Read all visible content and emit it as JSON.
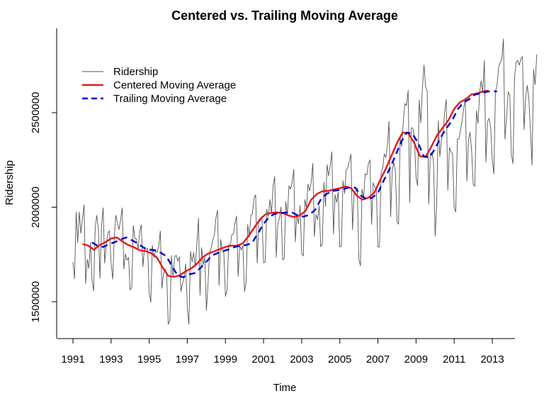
{
  "chart_data": {
    "type": "line",
    "title": "Centered vs. Trailing Moving Average",
    "xlabel": "Time",
    "ylabel": "Ridership",
    "xlim": [
      1991.0,
      2013.25
    ],
    "ylim": [
      1380000,
      2950000
    ],
    "x_ticks": [
      1991,
      1993,
      1995,
      1997,
      1999,
      2001,
      2003,
      2005,
      2007,
      2009,
      2011,
      2013
    ],
    "x_tick_labels": [
      "1991",
      "1993",
      "1995",
      "1997",
      "1999",
      "2001",
      "2003",
      "2005",
      "2007",
      "2009",
      "2011",
      "2013"
    ],
    "y_ticks": [
      1500000,
      2000000,
      2500000
    ],
    "y_tick_labels": [
      "1500000",
      "2000000",
      "2500000"
    ],
    "legend_position": "top-left",
    "grid": false,
    "series": [
      {
        "name": "Ridership",
        "color": "#555555",
        "style": "solid-thin",
        "start": 1991.0,
        "step": 0.0833333,
        "values": [
          1709000,
          1621000,
          1973000,
          1812000,
          1975000,
          1862000,
          1940000,
          2013000,
          1596000,
          1725000,
          1676000,
          1814000,
          1615000,
          1557000,
          1891000,
          1956000,
          1885000,
          1623000,
          1903000,
          1997000,
          1704000,
          1810000,
          1862000,
          1875000,
          1705000,
          1619000,
          1837000,
          1957000,
          1917000,
          1882000,
          1933000,
          1996000,
          1673000,
          1753000,
          1720000,
          1734000,
          1563000,
          1574000,
          1903000,
          1834000,
          1831000,
          1776000,
          1868000,
          1907000,
          1686000,
          1779000,
          1776000,
          1783000,
          1548000,
          1497000,
          1798000,
          1733000,
          1772000,
          1761000,
          1792000,
          1875000,
          1571000,
          1647000,
          1673000,
          1646000,
          1381000,
          1402000,
          1744000,
          1630000,
          1736000,
          1746000,
          1714000,
          1738000,
          1554000,
          1598000,
          1629000,
          1700000,
          1465000,
          1380000,
          1766000,
          1711000,
          1760000,
          1685000,
          1803000,
          1941000,
          1534000,
          1786000,
          1696000,
          1734000,
          1454000,
          1590000,
          1758000,
          1784000,
          1824000,
          1852000,
          1941000,
          1985000,
          1587000,
          1830000,
          1768000,
          1758000,
          1528000,
          1560000,
          1803000,
          1794000,
          1854000,
          1858000,
          1914000,
          1953000,
          1634000,
          1796000,
          1774000,
          1795000,
          1554000,
          1600000,
          1908000,
          1842000,
          1956000,
          1967000,
          2046000,
          2066000,
          1705000,
          1924000,
          1928000,
          1951000,
          1706000,
          1709000,
          1989000,
          1951000,
          2040000,
          1966000,
          2111000,
          2161000,
          1735000,
          1916000,
          1940000,
          2001000,
          1721000,
          1729000,
          2030000,
          1955000,
          2113000,
          2095000,
          2131000,
          2200000,
          1817000,
          1963000,
          1913000,
          2009000,
          1756000,
          1742000,
          2040000,
          1997000,
          2122000,
          2086000,
          2134000,
          2232000,
          1845000,
          1962000,
          1934000,
          2007000,
          1791000,
          1809000,
          2134000,
          2004000,
          2225000,
          2165000,
          2222000,
          2292000,
          1858000,
          2066000,
          2025000,
          2080000,
          1789000,
          1795000,
          2141000,
          2072000,
          2197000,
          2208000,
          2244000,
          2280000,
          1881000,
          2073000,
          2082000,
          2101000,
          1726000,
          1690000,
          2095000,
          2050000,
          2176000,
          2170000,
          2230000,
          2250000,
          1909000,
          2129000,
          2107000,
          2098000,
          1790000,
          1790000,
          2178000,
          2208000,
          2282000,
          2263000,
          2330000,
          2453000,
          1950000,
          2195000,
          2236000,
          2191000,
          1923000,
          1910000,
          2366000,
          2321000,
          2455000,
          2548000,
          2537000,
          2618000,
          2026000,
          2419000,
          2418000,
          2359000,
          2153000,
          2114000,
          2566000,
          2446000,
          2628000,
          2751000,
          2637000,
          2616000,
          2016000,
          2283000,
          2289000,
          2244000,
          1847000,
          2014000,
          2457000,
          2268000,
          2357000,
          2393000,
          2498000,
          2570000,
          2091000,
          2315000,
          2294000,
          2285000,
          1999000,
          1975000,
          2361000,
          2360000,
          2409000,
          2457000,
          2520000,
          2578000,
          2138000,
          2356000,
          2396000,
          2300000,
          2121000,
          2110000,
          2510000,
          2442000,
          2604000,
          2669000,
          2605000,
          2775000,
          2238000,
          2454000,
          2469000,
          2420000,
          2250000,
          2175000,
          2614000,
          2644000,
          2742000,
          2765000,
          2784000,
          2890000,
          2360000,
          2477000,
          2610000,
          2593000,
          2280000,
          2230000,
          2687000,
          2766000,
          2776000,
          2751000,
          2785000,
          2797000,
          2410000,
          2579000,
          2644000,
          2579000,
          2410000,
          2222000,
          2729000,
          2648000,
          2808000
        ]
      },
      {
        "name": "Centered Moving Average",
        "color": "#e41a1c",
        "style": "solid-thick",
        "points": [
          [
            1991.5,
            1805000
          ],
          [
            1991.8,
            1797000
          ],
          [
            1992.1,
            1775000
          ],
          [
            1992.4,
            1800000
          ],
          [
            1992.7,
            1815000
          ],
          [
            1993.0,
            1834000
          ],
          [
            1993.3,
            1840000
          ],
          [
            1993.6,
            1818000
          ],
          [
            1993.9,
            1800000
          ],
          [
            1994.2,
            1788000
          ],
          [
            1994.5,
            1772000
          ],
          [
            1994.8,
            1768000
          ],
          [
            1995.1,
            1757000
          ],
          [
            1995.4,
            1734000
          ],
          [
            1995.7,
            1682000
          ],
          [
            1996.0,
            1637000
          ],
          [
            1996.3,
            1631000
          ],
          [
            1996.6,
            1640000
          ],
          [
            1996.9,
            1660000
          ],
          [
            1997.2,
            1676000
          ],
          [
            1997.5,
            1700000
          ],
          [
            1997.8,
            1735000
          ],
          [
            1998.1,
            1755000
          ],
          [
            1998.4,
            1766000
          ],
          [
            1998.7,
            1778000
          ],
          [
            1999.0,
            1790000
          ],
          [
            1999.3,
            1796000
          ],
          [
            1999.6,
            1796000
          ],
          [
            1999.9,
            1808000
          ],
          [
            2000.2,
            1846000
          ],
          [
            2000.5,
            1890000
          ],
          [
            2000.8,
            1935000
          ],
          [
            2001.1,
            1962000
          ],
          [
            2001.4,
            1970000
          ],
          [
            2001.7,
            1972000
          ],
          [
            2002.0,
            1970000
          ],
          [
            2002.3,
            1956000
          ],
          [
            2002.6,
            1948000
          ],
          [
            2002.9,
            1956000
          ],
          [
            2003.2,
            1980000
          ],
          [
            2003.5,
            2040000
          ],
          [
            2003.8,
            2070000
          ],
          [
            2004.1,
            2085000
          ],
          [
            2004.4,
            2086000
          ],
          [
            2004.7,
            2094000
          ],
          [
            2005.0,
            2100000
          ],
          [
            2005.3,
            2110000
          ],
          [
            2005.6,
            2100000
          ],
          [
            2005.9,
            2060000
          ],
          [
            2006.2,
            2040000
          ],
          [
            2006.5,
            2050000
          ],
          [
            2006.8,
            2075000
          ],
          [
            2007.1,
            2140000
          ],
          [
            2007.4,
            2200000
          ],
          [
            2007.7,
            2270000
          ],
          [
            2008.0,
            2340000
          ],
          [
            2008.3,
            2395000
          ],
          [
            2008.6,
            2390000
          ],
          [
            2008.9,
            2340000
          ],
          [
            2009.2,
            2270000
          ],
          [
            2009.5,
            2265000
          ],
          [
            2009.8,
            2320000
          ],
          [
            2010.1,
            2380000
          ],
          [
            2010.4,
            2420000
          ],
          [
            2010.7,
            2460000
          ],
          [
            2011.0,
            2520000
          ],
          [
            2011.3,
            2555000
          ],
          [
            2011.6,
            2570000
          ],
          [
            2011.9,
            2596000
          ],
          [
            2012.2,
            2602000
          ],
          [
            2012.5,
            2612000
          ],
          [
            2012.8,
            2616000
          ]
        ]
      },
      {
        "name": "Trailing Moving Average",
        "color": "#0000cd",
        "style": "dashed-thick",
        "points": [
          [
            1992.0,
            1814000
          ],
          [
            1992.3,
            1795000
          ],
          [
            1992.6,
            1790000
          ],
          [
            1992.9,
            1805000
          ],
          [
            1993.2,
            1815000
          ],
          [
            1993.5,
            1830000
          ],
          [
            1993.8,
            1840000
          ],
          [
            1994.1,
            1825000
          ],
          [
            1994.4,
            1808000
          ],
          [
            1994.7,
            1786000
          ],
          [
            1995.0,
            1776000
          ],
          [
            1995.3,
            1772000
          ],
          [
            1995.6,
            1760000
          ],
          [
            1995.9,
            1740000
          ],
          [
            1996.2,
            1688000
          ],
          [
            1996.5,
            1637000
          ],
          [
            1996.8,
            1630000
          ],
          [
            1997.1,
            1645000
          ],
          [
            1997.4,
            1652000
          ],
          [
            1997.7,
            1680000
          ],
          [
            1998.0,
            1712000
          ],
          [
            1998.3,
            1745000
          ],
          [
            1998.6,
            1758000
          ],
          [
            1998.9,
            1768000
          ],
          [
            1999.2,
            1778000
          ],
          [
            1999.5,
            1790000
          ],
          [
            1999.8,
            1797000
          ],
          [
            2000.1,
            1800000
          ],
          [
            2000.4,
            1812000
          ],
          [
            2000.7,
            1860000
          ],
          [
            2001.0,
            1912000
          ],
          [
            2001.3,
            1950000
          ],
          [
            2001.6,
            1965000
          ],
          [
            2001.9,
            1968000
          ],
          [
            2002.2,
            1972000
          ],
          [
            2002.5,
            1972000
          ],
          [
            2002.8,
            1956000
          ],
          [
            2003.1,
            1950000
          ],
          [
            2003.4,
            1960000
          ],
          [
            2003.7,
            1985000
          ],
          [
            2004.0,
            2040000
          ],
          [
            2004.3,
            2070000
          ],
          [
            2004.6,
            2085000
          ],
          [
            2004.9,
            2090000
          ],
          [
            2005.2,
            2096000
          ],
          [
            2005.5,
            2105000
          ],
          [
            2005.8,
            2104000
          ],
          [
            2006.1,
            2062000
          ],
          [
            2006.4,
            2042000
          ],
          [
            2006.7,
            2050000
          ],
          [
            2007.0,
            2075000
          ],
          [
            2007.3,
            2140000
          ],
          [
            2007.6,
            2200000
          ],
          [
            2007.9,
            2268000
          ],
          [
            2008.2,
            2340000
          ],
          [
            2008.5,
            2395000
          ],
          [
            2008.8,
            2390000
          ],
          [
            2009.1,
            2342000
          ],
          [
            2009.4,
            2270000
          ],
          [
            2009.7,
            2262000
          ],
          [
            2010.0,
            2310000
          ],
          [
            2010.3,
            2370000
          ],
          [
            2010.6,
            2418000
          ],
          [
            2010.9,
            2460000
          ],
          [
            2011.2,
            2520000
          ],
          [
            2011.5,
            2554000
          ],
          [
            2011.8,
            2572000
          ],
          [
            2012.1,
            2596000
          ],
          [
            2012.4,
            2602000
          ],
          [
            2012.7,
            2610000
          ],
          [
            2013.0,
            2614000
          ],
          [
            2013.25,
            2612000
          ]
        ]
      }
    ]
  }
}
